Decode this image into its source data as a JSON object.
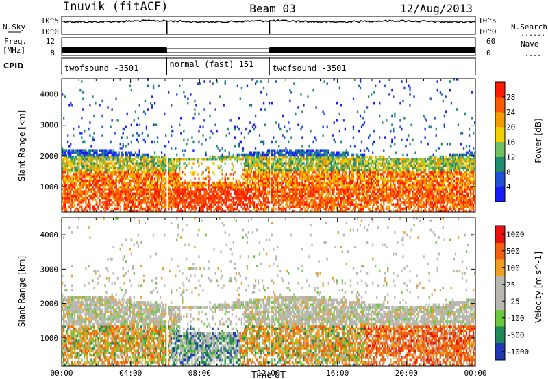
{
  "header": {
    "title": "Inuvik (fitACF)",
    "beam": "Beam 03",
    "date": "12/Aug/2013"
  },
  "labels": {
    "nsky": "N.Sky",
    "nsearch": "N.Search",
    "freq": "Freq.",
    "mhz": "[MHz]",
    "nave": "Nave",
    "cpid": "CPID",
    "dotted": "......",
    "dotted_short": "...."
  },
  "axes": {
    "noise_left_top": "10^5",
    "noise_left_bottom": "10^0",
    "noise_right_top": "10^5",
    "noise_right_bottom": "10^0",
    "freq_left_top": "12",
    "freq_left_bottom": "8",
    "freq_right_top": "60",
    "freq_right_bottom": "0"
  },
  "cpid_segments": [
    {
      "start_hour": 0,
      "end_hour": 6.1,
      "label": "twofsound -3501"
    },
    {
      "start_hour": 6.1,
      "end_hour": 12.05,
      "label": "normal (fast) 151"
    },
    {
      "start_hour": 12.05,
      "end_hour": 24,
      "label": "twofsound -3501"
    }
  ],
  "chart_data": [
    {
      "type": "heatmap",
      "name": "power",
      "xlabel": "",
      "ylabel": "Slant Range [km]",
      "xlim": [
        0,
        24
      ],
      "ylim": [
        180,
        4500
      ],
      "yticks": [
        1000,
        2000,
        3000,
        4000
      ],
      "colorbar": {
        "label": "Power [dB]",
        "ticks": [
          "4",
          "8",
          "12",
          "16",
          "20",
          "24",
          "28"
        ],
        "range": [
          0,
          32
        ],
        "colors": [
          "#1a1aff",
          "#2050d8",
          "#1e8c6e",
          "#6ec060",
          "#f0d000",
          "#f59a00",
          "#ff5a00",
          "#ff1a00"
        ]
      }
    },
    {
      "type": "heatmap",
      "name": "velocity",
      "xlabel": "Time UT",
      "ylabel": "Slant Range [km]",
      "xlim": [
        0,
        24
      ],
      "ylim": [
        180,
        4500
      ],
      "yticks": [
        1000,
        2000,
        3000,
        4000
      ],
      "xticks": [
        "00:00",
        "04:00",
        "08:00",
        "12:00",
        "16:00",
        "20:00",
        "00:00"
      ],
      "colorbar": {
        "label": "Velocity [m s^-1]",
        "ticks": [
          "1000",
          "500",
          "100",
          "25",
          "-25",
          "-100",
          "-500",
          "-1000"
        ],
        "colors": [
          "#2038b8",
          "#1e8a58",
          "#6cc83c",
          "#b8b8b0",
          "#b8b8b0",
          "#f0a020",
          "#f06010",
          "#e81010"
        ]
      }
    }
  ]
}
